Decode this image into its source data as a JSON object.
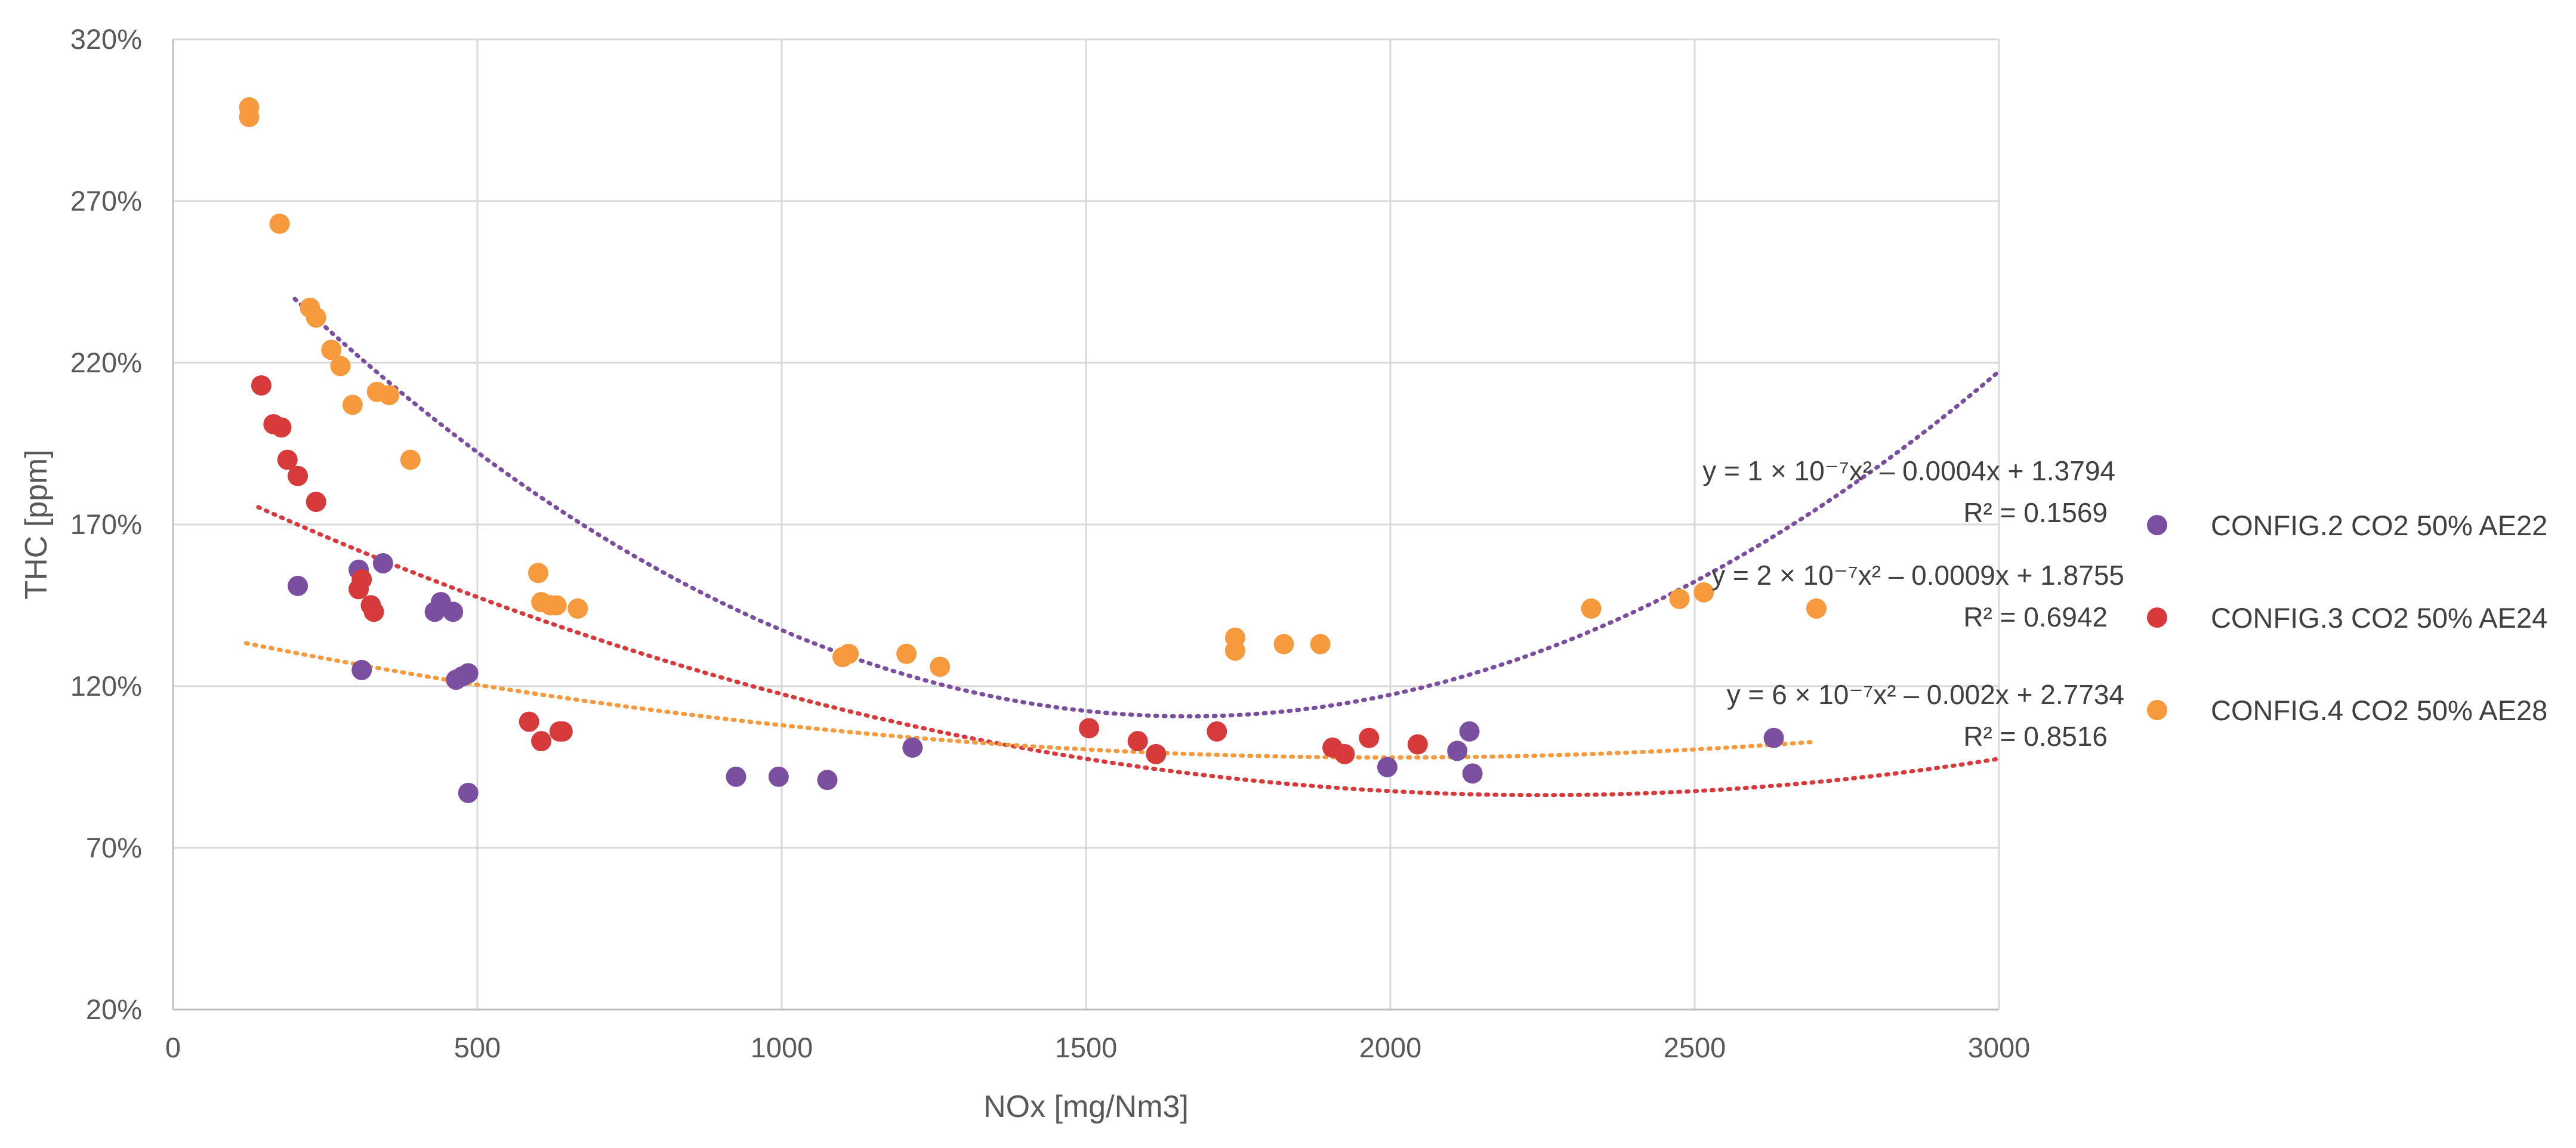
{
  "chart_data": {
    "type": "scatter",
    "title": "",
    "xlabel": "NOx [mg/Nm3]",
    "ylabel": "THC [ppm]",
    "xlim": [
      0,
      3000
    ],
    "ylim": [
      20,
      320
    ],
    "x_ticks": [
      0,
      500,
      1000,
      1500,
      2000,
      2500,
      3000
    ],
    "y_ticks": [
      20,
      70,
      120,
      170,
      220,
      270,
      320
    ],
    "y_tick_suffix": "%",
    "grid": true,
    "legend_position": "right",
    "series": [
      {
        "name": "CONFIG.2 CO2 50% AE22",
        "color": "#7b4fa0",
        "points": [
          [
            205,
            151
          ],
          [
            305,
            156
          ],
          [
            310,
            125
          ],
          [
            345,
            158
          ],
          [
            430,
            143
          ],
          [
            440,
            146
          ],
          [
            460,
            143
          ],
          [
            465,
            122
          ],
          [
            475,
            123
          ],
          [
            485,
            124
          ],
          [
            485,
            87
          ],
          [
            925,
            92
          ],
          [
            995,
            92
          ],
          [
            1075,
            91
          ],
          [
            1215,
            101
          ],
          [
            1995,
            95
          ],
          [
            2110,
            100
          ],
          [
            2130,
            106
          ],
          [
            2135,
            93
          ],
          [
            2630,
            104
          ]
        ],
        "trendline": {
          "a": 6e-07,
          "b": -0.002,
          "c": 2.7734,
          "x_from": 200,
          "x_to": 3000
        },
        "equation": "y = 6 × 10⁻⁷x² – 0.002x + 2.7734",
        "r2_label": "R² = 0.8516"
      },
      {
        "name": "CONFIG.3 CO2 50% AE24",
        "color": "#d63a3a",
        "points": [
          [
            145,
            213
          ],
          [
            165,
            201
          ],
          [
            178,
            200
          ],
          [
            188,
            190
          ],
          [
            205,
            185
          ],
          [
            235,
            177
          ],
          [
            305,
            150
          ],
          [
            310,
            153
          ],
          [
            325,
            145
          ],
          [
            330,
            143
          ],
          [
            585,
            109
          ],
          [
            605,
            103
          ],
          [
            635,
            106
          ],
          [
            640,
            106
          ],
          [
            1505,
            107
          ],
          [
            1585,
            103
          ],
          [
            1615,
            99
          ],
          [
            1715,
            106
          ],
          [
            1905,
            101
          ],
          [
            1925,
            99
          ],
          [
            1965,
            104
          ],
          [
            2045,
            102
          ]
        ],
        "trendline": {
          "a": 2e-07,
          "b": -0.0009,
          "c": 1.8755,
          "x_from": 140,
          "x_to": 3000
        },
        "equation": "y = 2 × 10⁻⁷x² – 0.0009x + 1.8755",
        "r2_label": "R² = 0.6942"
      },
      {
        "name": "CONFIG.4 CO2 50% AE28",
        "color": "#f79a3e",
        "points": [
          [
            125,
            299
          ],
          [
            125,
            296
          ],
          [
            175,
            263
          ],
          [
            225,
            237
          ],
          [
            235,
            234
          ],
          [
            260,
            224
          ],
          [
            275,
            219
          ],
          [
            295,
            207
          ],
          [
            335,
            211
          ],
          [
            355,
            210
          ],
          [
            390,
            190
          ],
          [
            600,
            155
          ],
          [
            605,
            146
          ],
          [
            620,
            145
          ],
          [
            630,
            145
          ],
          [
            665,
            144
          ],
          [
            1100,
            129
          ],
          [
            1110,
            130
          ],
          [
            1205,
            130
          ],
          [
            1260,
            126
          ],
          [
            1745,
            135
          ],
          [
            1745,
            131
          ],
          [
            1825,
            133
          ],
          [
            1885,
            133
          ],
          [
            2330,
            144
          ],
          [
            2475,
            147
          ],
          [
            2515,
            149
          ],
          [
            2700,
            144
          ]
        ],
        "trendline": {
          "a": 1e-07,
          "b": -0.0004,
          "c": 1.3794,
          "x_from": 120,
          "x_to": 2700
        },
        "equation": "y = 1 × 10⁻⁷x² – 0.0004x + 1.3794",
        "r2_label": "R² = 0.1569"
      }
    ]
  }
}
